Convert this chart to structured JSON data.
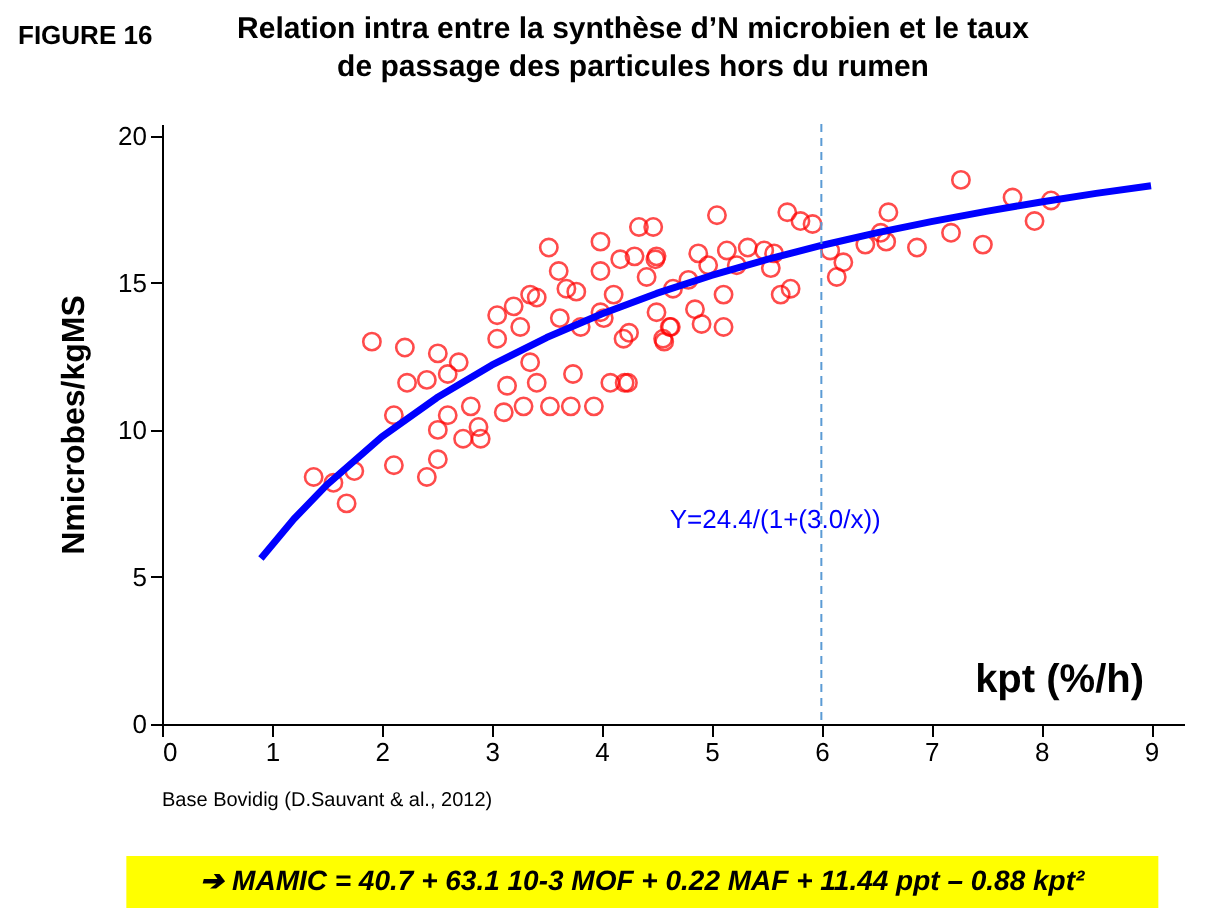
{
  "chart_data": {
    "type": "scatter",
    "title": [
      "Relation intra entre la synthèse d’N microbien et le taux",
      "de passage des particules hors du rumen"
    ],
    "xlabel": "kpt (%/h)",
    "ylabel": "Nmicrobes/kgMS",
    "xlim": [
      0,
      9.3
    ],
    "ylim": [
      0,
      20.4
    ],
    "xticks": [
      0,
      1,
      2,
      3,
      4,
      5,
      6,
      7,
      8,
      9
    ],
    "yticks": [
      0,
      5,
      10,
      15,
      20
    ],
    "grid": false,
    "legend": false,
    "marker": "circle",
    "annotations": [
      "FIGURE 16",
      "Base Bovidig (D.Sauvant & al., 2012)",
      "➔ MAMIC = 40.7 + 63.1 10-3 MOF + 0.22 MAF + 11.44 ppt – 0.88 kpt²"
    ],
    "ref_lines": [
      {
        "axis": "x",
        "value": 6,
        "color": "#5b9bd5",
        "line_style": "dashed"
      }
    ],
    "series": [
      {
        "color": "#ff0000",
        "x": [
          1.38,
          1.56,
          1.68,
          1.75,
          1.91,
          2.11,
          2.11,
          2.21,
          2.23,
          2.41,
          2.41,
          2.51,
          2.51,
          2.51,
          2.6,
          2.6,
          2.7,
          2.74,
          2.81,
          2.88,
          2.9,
          3.05,
          3.05,
          3.14,
          3.11,
          3.2,
          3.26,
          3.29,
          3.35,
          3.35,
          3.41,
          3.41,
          3.52,
          3.53,
          3.61,
          3.62,
          3.68,
          3.72,
          3.74,
          3.77,
          3.81,
          3.93,
          3.99,
          3.99,
          3.99,
          4.02,
          4.08,
          4.11,
          4.17,
          4.2,
          4.21,
          4.25,
          4.34,
          4.47,
          4.41,
          4.5,
          4.5,
          4.56,
          4.62,
          4.65,
          4.24,
          4.3,
          4.49,
          4.57,
          4.63,
          4.79,
          4.85,
          4.88,
          4.91,
          4.97,
          5.05,
          5.11,
          5.11,
          5.14,
          5.23,
          5.33,
          5.48,
          5.57,
          5.54,
          5.63,
          5.72,
          5.69,
          5.81,
          5.92,
          6.08,
          6.14,
          6.2,
          6.4,
          6.54,
          6.59,
          6.61,
          6.87,
          7.18,
          7.27,
          7.47,
          7.74,
          7.94,
          8.09
        ],
        "values": [
          8.4,
          8.2,
          7.5,
          8.6,
          13.0,
          10.5,
          8.8,
          12.8,
          11.6,
          11.7,
          8.4,
          12.6,
          10.0,
          9.0,
          11.9,
          10.5,
          12.3,
          9.7,
          10.8,
          10.1,
          9.7,
          13.9,
          13.1,
          11.5,
          10.6,
          14.2,
          13.5,
          10.8,
          14.6,
          12.3,
          11.6,
          14.5,
          16.2,
          10.8,
          15.4,
          13.8,
          14.8,
          10.8,
          11.9,
          14.7,
          13.5,
          10.8,
          16.4,
          15.4,
          14.0,
          13.8,
          11.6,
          14.6,
          15.8,
          13.1,
          11.6,
          13.3,
          16.9,
          16.9,
          15.2,
          15.9,
          14.0,
          13.1,
          13.5,
          14.8,
          11.6,
          15.9,
          15.8,
          13.0,
          13.5,
          15.1,
          14.1,
          16.0,
          13.6,
          15.6,
          17.3,
          13.5,
          14.6,
          16.1,
          15.6,
          16.2,
          16.1,
          16.0,
          15.5,
          14.6,
          14.8,
          17.4,
          17.1,
          17.0,
          16.1,
          15.2,
          15.7,
          16.3,
          16.7,
          16.4,
          17.4,
          16.2,
          16.7,
          18.5,
          16.3,
          17.9,
          17.1,
          17.8
        ]
      },
      {
        "type": "line",
        "marker": "none",
        "name": "Y=24.4/(1+(3.0/x))",
        "color": "#0000ff",
        "x": [
          0.9,
          1.2,
          1.5,
          2,
          2.5,
          3,
          3.5,
          4,
          4.5,
          5,
          5.5,
          6,
          6.5,
          7,
          7.5,
          8,
          8.5,
          9
        ],
        "values": [
          5.63,
          6.97,
          8.13,
          9.76,
          11.09,
          12.2,
          13.14,
          13.94,
          14.64,
          15.25,
          15.79,
          16.27,
          16.7,
          17.08,
          17.43,
          17.75,
          18.04,
          18.3
        ]
      }
    ]
  }
}
